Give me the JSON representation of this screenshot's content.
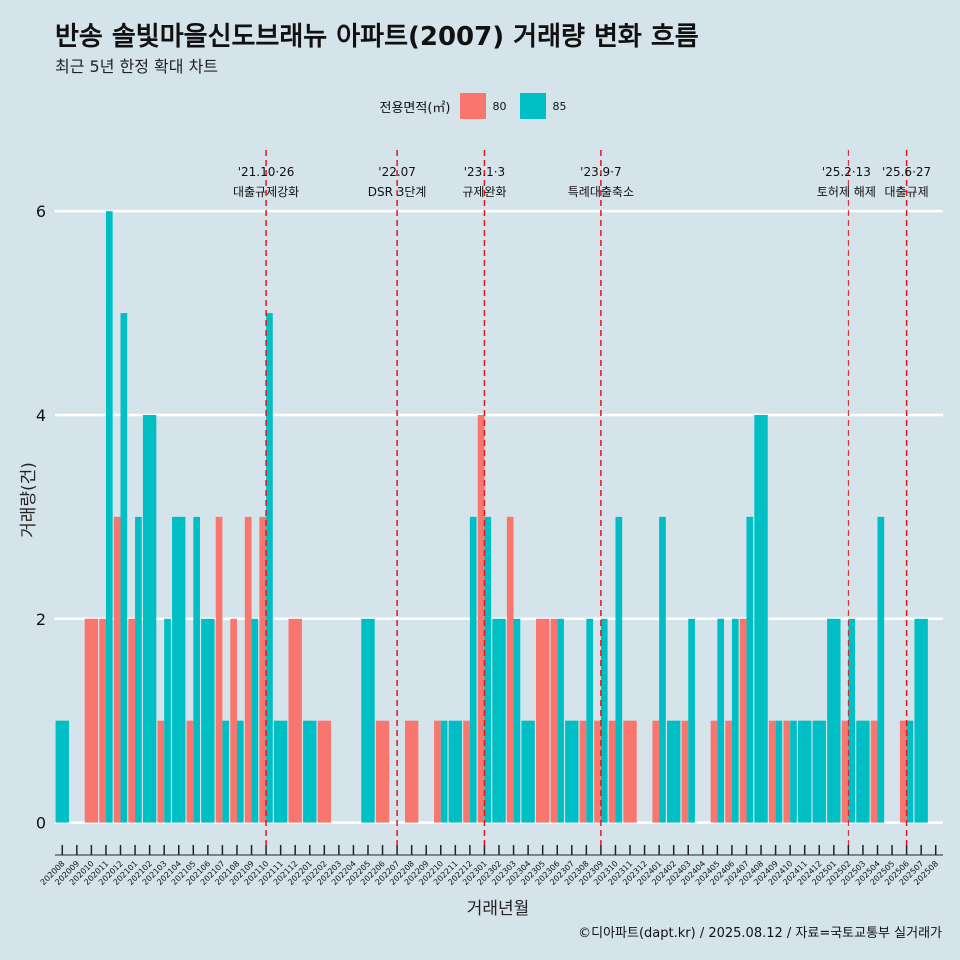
{
  "title": "반송 솔빛마을신도브래뉴 아파트(2007) 거래량 변화 흐름",
  "subtitle": "최근 5년 한정 확대 차트",
  "legend": {
    "title": "전용면적(㎡)",
    "items": [
      {
        "label": "80",
        "color": "#f8766d"
      },
      {
        "label": "85",
        "color": "#00bfc4"
      }
    ]
  },
  "caption": "©디아파트(dapt.kr) / 2025.08.12 / 자료=국토교통부 실거래가",
  "chart_data": {
    "type": "bar",
    "title": "반송 솔빛마을신도브래뉴 아파트(2007) 거래량 변화 흐름",
    "xlabel": "거래년월",
    "ylabel": "거래량(건)",
    "ylim": [
      0,
      6.6
    ],
    "yticks": [
      0,
      2,
      4,
      6
    ],
    "categories": [
      "202008",
      "202009",
      "202010",
      "202011",
      "202012",
      "202101",
      "202102",
      "202103",
      "202104",
      "202105",
      "202106",
      "202107",
      "202108",
      "202109",
      "202110",
      "202111",
      "202112",
      "202201",
      "202202",
      "202203",
      "202204",
      "202205",
      "202206",
      "202207",
      "202208",
      "202209",
      "202210",
      "202211",
      "202212",
      "202301",
      "202302",
      "202303",
      "202304",
      "202305",
      "202306",
      "202307",
      "202308",
      "202309",
      "202310",
      "202311",
      "202312",
      "202401",
      "202402",
      "202403",
      "202404",
      "202405",
      "202406",
      "202407",
      "202408",
      "202409",
      "202410",
      "202411",
      "202412",
      "202501",
      "202502",
      "202503",
      "202504",
      "202505",
      "202506",
      "202507",
      "202508"
    ],
    "series": [
      {
        "name": "80",
        "color": "#f8766d",
        "values": [
          0,
          0,
          2,
          2,
          3,
          2,
          0,
          1,
          0,
          1,
          0,
          3,
          2,
          3,
          3,
          0,
          2,
          0,
          1,
          0,
          0,
          0,
          1,
          0,
          1,
          0,
          1,
          0,
          1,
          4,
          0,
          3,
          0,
          2,
          2,
          0,
          1,
          1,
          1,
          1,
          0,
          1,
          0,
          1,
          0,
          1,
          1,
          2,
          0,
          1,
          1,
          0,
          0,
          0,
          1,
          0,
          1,
          0,
          1,
          0,
          0
        ]
      },
      {
        "name": "85",
        "color": "#00bfc4",
        "values": [
          1,
          0,
          0,
          6,
          5,
          3,
          4,
          2,
          3,
          3,
          2,
          1,
          1,
          2,
          5,
          1,
          0,
          1,
          0,
          0,
          0,
          2,
          0,
          0,
          0,
          0,
          1,
          1,
          3,
          3,
          2,
          2,
          1,
          0,
          2,
          1,
          2,
          2,
          3,
          0,
          0,
          3,
          1,
          2,
          0,
          2,
          2,
          3,
          4,
          1,
          1,
          1,
          1,
          2,
          2,
          1,
          3,
          0,
          1,
          2,
          0
        ]
      }
    ],
    "annotations": [
      {
        "at": "202110",
        "date": "'21.10·26",
        "text": "대출규제강화"
      },
      {
        "at": "202207",
        "date": "'22.07",
        "text": "DSR 3단계"
      },
      {
        "at": "202301",
        "date": "'23.1·3",
        "text": "규제완화"
      },
      {
        "at": "202309",
        "date": "'23.9·7",
        "text": "특례대출축소"
      },
      {
        "at": "202502",
        "date": "'25.2·13",
        "text": "토허제 해제"
      },
      {
        "at": "202506",
        "date": "'25.6·27",
        "text": "대출규제"
      }
    ]
  }
}
